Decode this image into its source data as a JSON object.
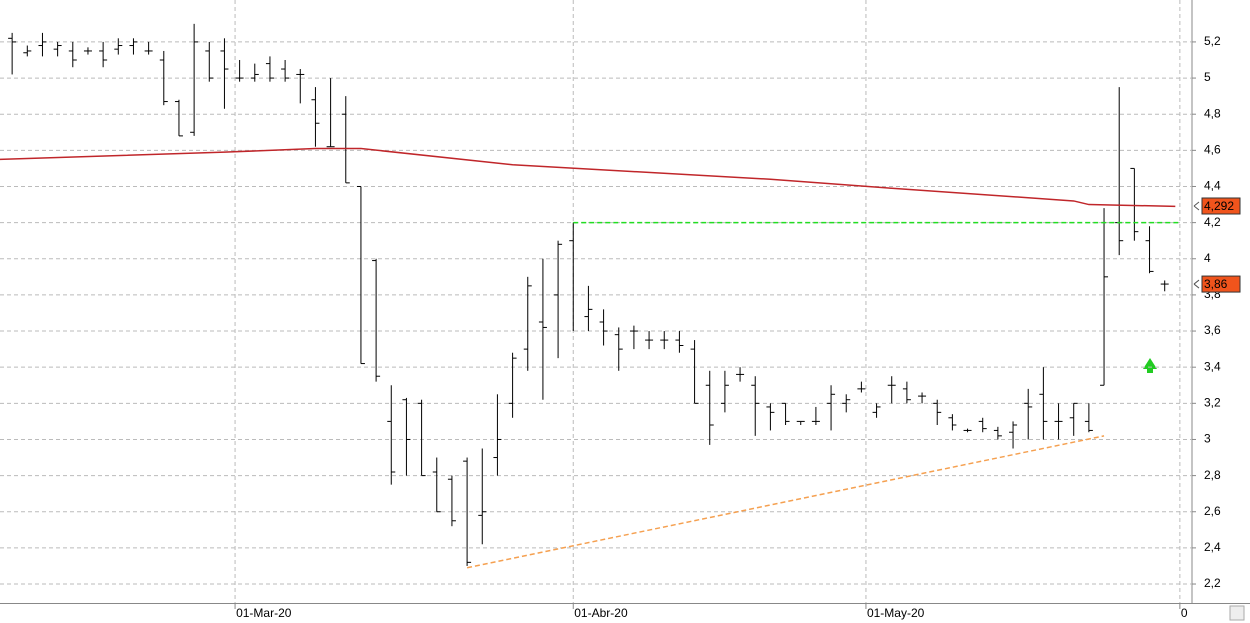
{
  "chart_data": {
    "type": "ohlc",
    "color": "#000000",
    "open": [
      5.22,
      5.14,
      5.18,
      5.16,
      5.15,
      5.15,
      5.15,
      5.16,
      5.18,
      5.15,
      5.1,
      4.87,
      4.7,
      5.15,
      5.15,
      5.0,
      5.0,
      5.08,
      5.05,
      5.02,
      4.88,
      4.62,
      4.8,
      4.4,
      3.99,
      3.1,
      3.22,
      3.2,
      2.82,
      2.78,
      2.88,
      2.58,
      2.9,
      3.2,
      3.5,
      3.65,
      3.8,
      4.1,
      3.68,
      3.65,
      3.58,
      3.6,
      3.55,
      3.55,
      3.55,
      3.5,
      3.3,
      3.2,
      3.36,
      3.3,
      3.18,
      3.2,
      3.1,
      3.1,
      3.2,
      3.2,
      3.28,
      3.15,
      3.3,
      3.28,
      3.24,
      3.2,
      3.12,
      3.05,
      3.1,
      3.05,
      3.04,
      3.2,
      3.25,
      3.1,
      3.12,
      3.1,
      3.3,
      4.2,
      4.5,
      4.1,
      3.86
    ],
    "high": [
      5.25,
      5.18,
      5.25,
      5.2,
      5.2,
      5.17,
      5.2,
      5.22,
      5.22,
      5.2,
      5.15,
      4.88,
      5.3,
      5.2,
      5.22,
      5.1,
      5.08,
      5.12,
      5.1,
      5.05,
      4.95,
      5.0,
      4.9,
      4.4,
      4.0,
      3.3,
      3.23,
      3.22,
      2.9,
      2.8,
      2.9,
      2.95,
      3.25,
      3.48,
      3.9,
      4.0,
      4.1,
      4.2,
      3.85,
      3.72,
      3.62,
      3.63,
      3.6,
      3.6,
      3.6,
      3.55,
      3.38,
      3.38,
      3.4,
      3.35,
      3.2,
      3.2,
      3.1,
      3.18,
      3.3,
      3.25,
      3.32,
      3.2,
      3.35,
      3.32,
      3.26,
      3.22,
      3.14,
      3.06,
      3.12,
      3.07,
      3.1,
      3.28,
      3.4,
      3.2,
      3.2,
      3.2,
      4.28,
      4.95,
      4.5,
      4.18,
      3.88
    ],
    "low": [
      5.02,
      5.12,
      5.12,
      5.12,
      5.06,
      5.13,
      5.06,
      5.13,
      5.13,
      5.13,
      4.85,
      4.68,
      4.68,
      4.98,
      4.83,
      4.98,
      4.98,
      4.98,
      4.98,
      4.86,
      4.62,
      4.62,
      4.42,
      3.42,
      3.32,
      2.75,
      2.8,
      2.8,
      2.6,
      2.52,
      2.3,
      2.42,
      2.8,
      3.12,
      3.38,
      3.22,
      3.45,
      3.6,
      3.6,
      3.52,
      3.38,
      3.5,
      3.5,
      3.5,
      3.48,
      3.2,
      2.97,
      3.15,
      3.32,
      3.02,
      3.05,
      3.08,
      3.08,
      3.08,
      3.05,
      3.15,
      3.26,
      3.12,
      3.2,
      3.2,
      3.2,
      3.08,
      3.05,
      3.04,
      3.04,
      3.0,
      2.95,
      3.0,
      3.0,
      3.0,
      3.02,
      3.04,
      3.3,
      4.02,
      4.1,
      3.92,
      3.82
    ],
    "close": [
      5.2,
      5.15,
      5.2,
      5.18,
      5.1,
      5.15,
      5.1,
      5.18,
      5.2,
      5.15,
      4.87,
      4.68,
      5.2,
      5.0,
      5.05,
      5.0,
      5.02,
      5.0,
      5.0,
      5.02,
      4.75,
      4.62,
      4.42,
      3.42,
      3.35,
      2.82,
      3.0,
      2.8,
      2.6,
      2.55,
      2.32,
      2.6,
      3.0,
      3.45,
      3.85,
      3.62,
      4.08,
      4.2,
      3.72,
      3.6,
      3.5,
      3.6,
      3.55,
      3.55,
      3.52,
      3.2,
      3.08,
      3.3,
      3.36,
      3.2,
      3.15,
      3.1,
      3.1,
      3.1,
      3.25,
      3.22,
      3.28,
      3.18,
      3.3,
      3.22,
      3.24,
      3.15,
      3.08,
      3.05,
      3.06,
      3.02,
      3.08,
      3.18,
      3.1,
      3.1,
      3.2,
      3.05,
      3.9,
      4.1,
      4.15,
      3.93,
      3.86
    ],
    "overlays": [
      {
        "color": "#c0262a",
        "dashed": false,
        "x": [
          -0.8,
          14,
          20,
          23,
          33,
          50,
          58,
          70,
          71,
          76.7
        ],
        "values": [
          4.55,
          4.59,
          4.61,
          4.61,
          4.52,
          4.44,
          4.39,
          4.32,
          4.3,
          4.29
        ]
      },
      {
        "color": "#22dd22",
        "dashed": true,
        "x": [
          37,
          76.9
        ],
        "values": [
          4.2,
          4.2
        ]
      },
      {
        "color": "#f5a050",
        "dashed": true,
        "x": [
          30,
          72
        ],
        "values": [
          2.29,
          3.02
        ]
      }
    ],
    "price_labels": [
      {
        "value": 4.292,
        "label": "4,292",
        "color": "#f0541c"
      },
      {
        "value": 3.86,
        "label": "3,86",
        "color": "#f0541c"
      }
    ],
    "xlim": [
      -0.8,
      77.8
    ],
    "xticks": [
      {
        "value": 14.7,
        "label": "01-Mar-20"
      },
      {
        "value": 37,
        "label": "01-Abr-20"
      },
      {
        "value": 56.3,
        "label": "01-May-20"
      },
      {
        "value": 77,
        "label": "0"
      }
    ],
    "ylim": [
      2.095,
      5.432
    ],
    "yticks": [
      {
        "value": 2.2,
        "label": "2,2"
      },
      {
        "value": 2.4,
        "label": "2,4"
      },
      {
        "value": 2.6,
        "label": "2,6"
      },
      {
        "value": 2.8,
        "label": "2,8"
      },
      3,
      {
        "value": 3.2,
        "label": "3,2"
      },
      {
        "value": 3.4,
        "label": "3,4"
      },
      {
        "value": 3.6,
        "label": "3,6"
      },
      {
        "value": 3.8,
        "label": "3,8"
      },
      4,
      {
        "value": 4.2,
        "label": "4,2"
      },
      {
        "value": 4.4,
        "label": "4,4"
      },
      {
        "value": 4.6,
        "label": "4,6"
      },
      {
        "value": 4.8,
        "label": "4,8"
      },
      5,
      {
        "value": 5.2,
        "label": "5,2"
      }
    ],
    "grid": true
  }
}
